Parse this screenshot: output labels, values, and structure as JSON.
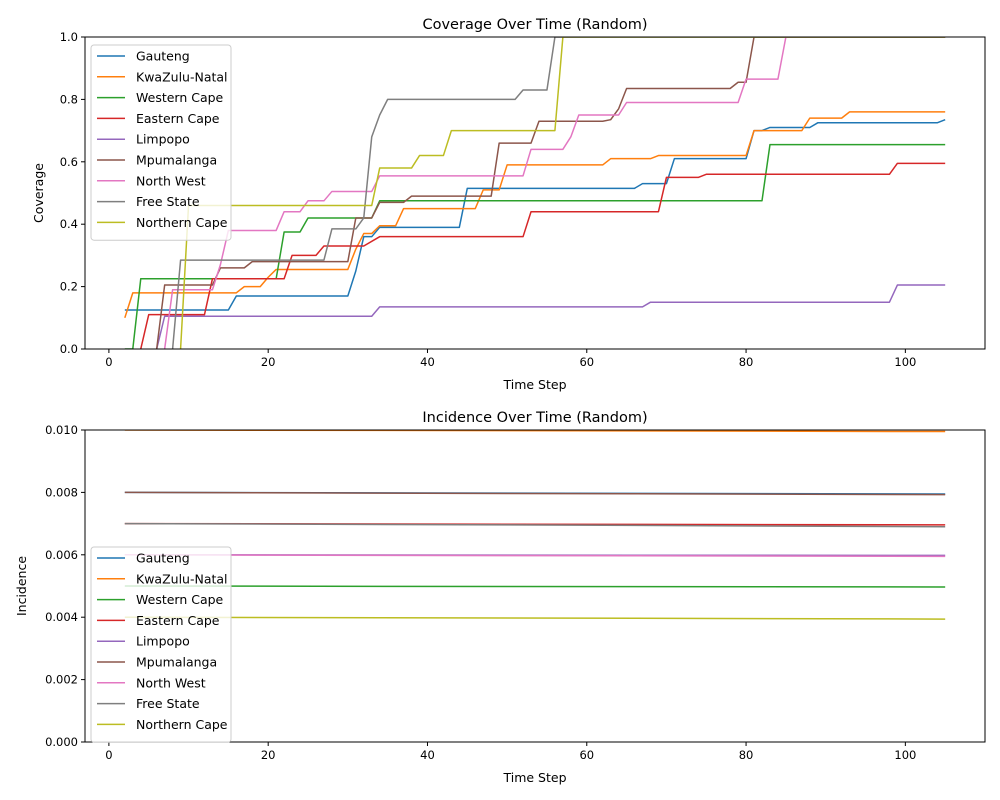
{
  "chart_data": [
    {
      "type": "line",
      "title": "Coverage Over Time (Random)",
      "xlabel": "Time Step",
      "ylabel": "Coverage",
      "xlim": [
        -3,
        110
      ],
      "ylim": [
        0,
        1.0
      ],
      "xticks": [
        0,
        20,
        40,
        60,
        80,
        100
      ],
      "yticks": [
        0.0,
        0.2,
        0.4,
        0.6,
        0.8,
        1.0
      ],
      "yticklabels": [
        "0.0",
        "0.2",
        "0.4",
        "0.6",
        "0.8",
        "1.0"
      ],
      "grid": false,
      "legend": "upper-left",
      "step": true,
      "series": [
        {
          "name": "Gauteng",
          "color": "#1f77b4",
          "points": [
            [
              2,
              0.125
            ],
            [
              15,
              0.125
            ],
            [
              16,
              0.17
            ],
            [
              30,
              0.17
            ],
            [
              31,
              0.25
            ],
            [
              32,
              0.36
            ],
            [
              33,
              0.36
            ],
            [
              34,
              0.39
            ],
            [
              44,
              0.39
            ],
            [
              45,
              0.515
            ],
            [
              66,
              0.515
            ],
            [
              67,
              0.53
            ],
            [
              70,
              0.53
            ],
            [
              71,
              0.61
            ],
            [
              80,
              0.61
            ],
            [
              81,
              0.7
            ],
            [
              82,
              0.7
            ],
            [
              83,
              0.71
            ],
            [
              88,
              0.71
            ],
            [
              89,
              0.725
            ],
            [
              104,
              0.725
            ],
            [
              105,
              0.735
            ]
          ]
        },
        {
          "name": "KwaZulu-Natal",
          "color": "#ff7f0e",
          "points": [
            [
              2,
              0.1
            ],
            [
              3,
              0.18
            ],
            [
              16,
              0.18
            ],
            [
              17,
              0.2
            ],
            [
              19,
              0.2
            ],
            [
              20,
              0.23
            ],
            [
              21,
              0.255
            ],
            [
              30,
              0.255
            ],
            [
              31,
              0.32
            ],
            [
              32,
              0.37
            ],
            [
              33,
              0.37
            ],
            [
              34,
              0.395
            ],
            [
              36,
              0.395
            ],
            [
              37,
              0.45
            ],
            [
              46,
              0.45
            ],
            [
              47,
              0.51
            ],
            [
              49,
              0.51
            ],
            [
              50,
              0.59
            ],
            [
              62,
              0.59
            ],
            [
              63,
              0.61
            ],
            [
              68,
              0.61
            ],
            [
              69,
              0.62
            ],
            [
              80,
              0.62
            ],
            [
              81,
              0.7
            ],
            [
              87,
              0.7
            ],
            [
              88,
              0.74
            ],
            [
              92,
              0.74
            ],
            [
              93,
              0.76
            ],
            [
              105,
              0.76
            ]
          ]
        },
        {
          "name": "Western Cape",
          "color": "#2ca02c",
          "points": [
            [
              2,
              0.0
            ],
            [
              3,
              0.0
            ],
            [
              4,
              0.225
            ],
            [
              21,
              0.225
            ],
            [
              22,
              0.375
            ],
            [
              24,
              0.375
            ],
            [
              25,
              0.42
            ],
            [
              33,
              0.42
            ],
            [
              34,
              0.475
            ],
            [
              82,
              0.475
            ],
            [
              83,
              0.655
            ],
            [
              105,
              0.655
            ]
          ]
        },
        {
          "name": "Eastern Cape",
          "color": "#d62728",
          "points": [
            [
              4,
              0.0
            ],
            [
              5,
              0.11
            ],
            [
              12,
              0.11
            ],
            [
              13,
              0.225
            ],
            [
              22,
              0.225
            ],
            [
              23,
              0.3
            ],
            [
              26,
              0.3
            ],
            [
              27,
              0.33
            ],
            [
              32,
              0.33
            ],
            [
              34,
              0.36
            ],
            [
              52,
              0.36
            ],
            [
              53,
              0.44
            ],
            [
              69,
              0.44
            ],
            [
              70,
              0.55
            ],
            [
              74,
              0.55
            ],
            [
              75,
              0.56
            ],
            [
              98,
              0.56
            ],
            [
              99,
              0.595
            ],
            [
              105,
              0.595
            ]
          ]
        },
        {
          "name": "Limpopo",
          "color": "#9467bd",
          "points": [
            [
              6,
              0.0
            ],
            [
              7,
              0.105
            ],
            [
              32,
              0.105
            ],
            [
              33,
              0.105
            ],
            [
              34,
              0.135
            ],
            [
              67,
              0.135
            ],
            [
              68,
              0.15
            ],
            [
              98,
              0.15
            ],
            [
              99,
              0.205
            ],
            [
              105,
              0.205
            ]
          ]
        },
        {
          "name": "Mpumalanga",
          "color": "#8c564b",
          "points": [
            [
              6,
              0.0
            ],
            [
              7,
              0.205
            ],
            [
              13,
              0.205
            ],
            [
              14,
              0.26
            ],
            [
              17,
              0.26
            ],
            [
              18,
              0.28
            ],
            [
              30,
              0.28
            ],
            [
              31,
              0.42
            ],
            [
              33,
              0.42
            ],
            [
              34,
              0.47
            ],
            [
              37,
              0.47
            ],
            [
              38,
              0.49
            ],
            [
              48,
              0.49
            ],
            [
              49,
              0.66
            ],
            [
              53,
              0.66
            ],
            [
              54,
              0.73
            ],
            [
              62,
              0.73
            ],
            [
              63,
              0.735
            ],
            [
              64,
              0.77
            ],
            [
              65,
              0.835
            ],
            [
              78,
              0.835
            ],
            [
              79,
              0.855
            ],
            [
              80,
              0.855
            ],
            [
              81,
              1.0
            ],
            [
              105,
              1.0
            ]
          ]
        },
        {
          "name": "North West",
          "color": "#e377c2",
          "points": [
            [
              7,
              0.0
            ],
            [
              8,
              0.19
            ],
            [
              13,
              0.19
            ],
            [
              14,
              0.27
            ],
            [
              15,
              0.38
            ],
            [
              21,
              0.38
            ],
            [
              22,
              0.44
            ],
            [
              24,
              0.44
            ],
            [
              25,
              0.475
            ],
            [
              27,
              0.475
            ],
            [
              28,
              0.505
            ],
            [
              33,
              0.505
            ],
            [
              34,
              0.555
            ],
            [
              52,
              0.555
            ],
            [
              53,
              0.64
            ],
            [
              57,
              0.64
            ],
            [
              58,
              0.68
            ],
            [
              59,
              0.75
            ],
            [
              64,
              0.75
            ],
            [
              65,
              0.79
            ],
            [
              79,
              0.79
            ],
            [
              80,
              0.865
            ],
            [
              84,
              0.865
            ],
            [
              85,
              1.0
            ],
            [
              105,
              1.0
            ]
          ]
        },
        {
          "name": "Free State",
          "color": "#7f7f7f",
          "points": [
            [
              8,
              0.0
            ],
            [
              9,
              0.285
            ],
            [
              27,
              0.285
            ],
            [
              28,
              0.385
            ],
            [
              31,
              0.385
            ],
            [
              32,
              0.42
            ],
            [
              33,
              0.68
            ],
            [
              34,
              0.75
            ],
            [
              35,
              0.8
            ],
            [
              51,
              0.8
            ],
            [
              52,
              0.83
            ],
            [
              55,
              0.83
            ],
            [
              56,
              1.0
            ],
            [
              105,
              1.0
            ]
          ]
        },
        {
          "name": "Northern Cape",
          "color": "#bcbd22",
          "points": [
            [
              9,
              0.0
            ],
            [
              10,
              0.46
            ],
            [
              33,
              0.46
            ],
            [
              34,
              0.58
            ],
            [
              38,
              0.58
            ],
            [
              39,
              0.62
            ],
            [
              42,
              0.62
            ],
            [
              43,
              0.7
            ],
            [
              56,
              0.7
            ],
            [
              57,
              1.0
            ],
            [
              105,
              1.0
            ]
          ]
        }
      ]
    },
    {
      "type": "line",
      "title": "Incidence Over Time (Random)",
      "xlabel": "Time Step",
      "ylabel": "Incidence",
      "xlim": [
        -3,
        110
      ],
      "ylim": [
        0,
        0.01
      ],
      "xticks": [
        0,
        20,
        40,
        60,
        80,
        100
      ],
      "yticks": [
        0.0,
        0.002,
        0.004,
        0.006,
        0.008,
        0.01
      ],
      "yticklabels": [
        "0.000",
        "0.002",
        "0.004",
        "0.006",
        "0.008",
        "0.010"
      ],
      "grid": false,
      "legend": "center-left",
      "step": false,
      "series": [
        {
          "name": "Gauteng",
          "color": "#1f77b4",
          "points": [
            [
              2,
              0.008
            ],
            [
              50,
              0.007975
            ],
            [
              105,
              0.00795
            ]
          ]
        },
        {
          "name": "KwaZulu-Natal",
          "color": "#ff7f0e",
          "points": [
            [
              2,
              0.01
            ],
            [
              50,
              0.00998
            ],
            [
              105,
              0.00995
            ]
          ]
        },
        {
          "name": "Western Cape",
          "color": "#2ca02c",
          "points": [
            [
              2,
              0.005
            ],
            [
              50,
              0.004985
            ],
            [
              105,
              0.00497
            ]
          ]
        },
        {
          "name": "Eastern Cape",
          "color": "#d62728",
          "points": [
            [
              2,
              0.007
            ],
            [
              50,
              0.00698
            ],
            [
              105,
              0.00696
            ]
          ]
        },
        {
          "name": "Limpopo",
          "color": "#9467bd",
          "points": [
            [
              2,
              0.006
            ],
            [
              50,
              0.00599
            ],
            [
              105,
              0.00598
            ]
          ]
        },
        {
          "name": "Mpumalanga",
          "color": "#8c564b",
          "points": [
            [
              2,
              0.008
            ],
            [
              50,
              0.007965
            ],
            [
              105,
              0.00793
            ]
          ]
        },
        {
          "name": "North West",
          "color": "#e377c2",
          "points": [
            [
              2,
              0.006
            ],
            [
              50,
              0.005975
            ],
            [
              105,
              0.00595
            ]
          ]
        },
        {
          "name": "Free State",
          "color": "#7f7f7f",
          "points": [
            [
              2,
              0.007
            ],
            [
              50,
              0.00696
            ],
            [
              105,
              0.0069
            ]
          ]
        },
        {
          "name": "Northern Cape",
          "color": "#bcbd22",
          "points": [
            [
              2,
              0.004
            ],
            [
              50,
              0.003975
            ],
            [
              105,
              0.00394
            ]
          ]
        }
      ]
    }
  ]
}
